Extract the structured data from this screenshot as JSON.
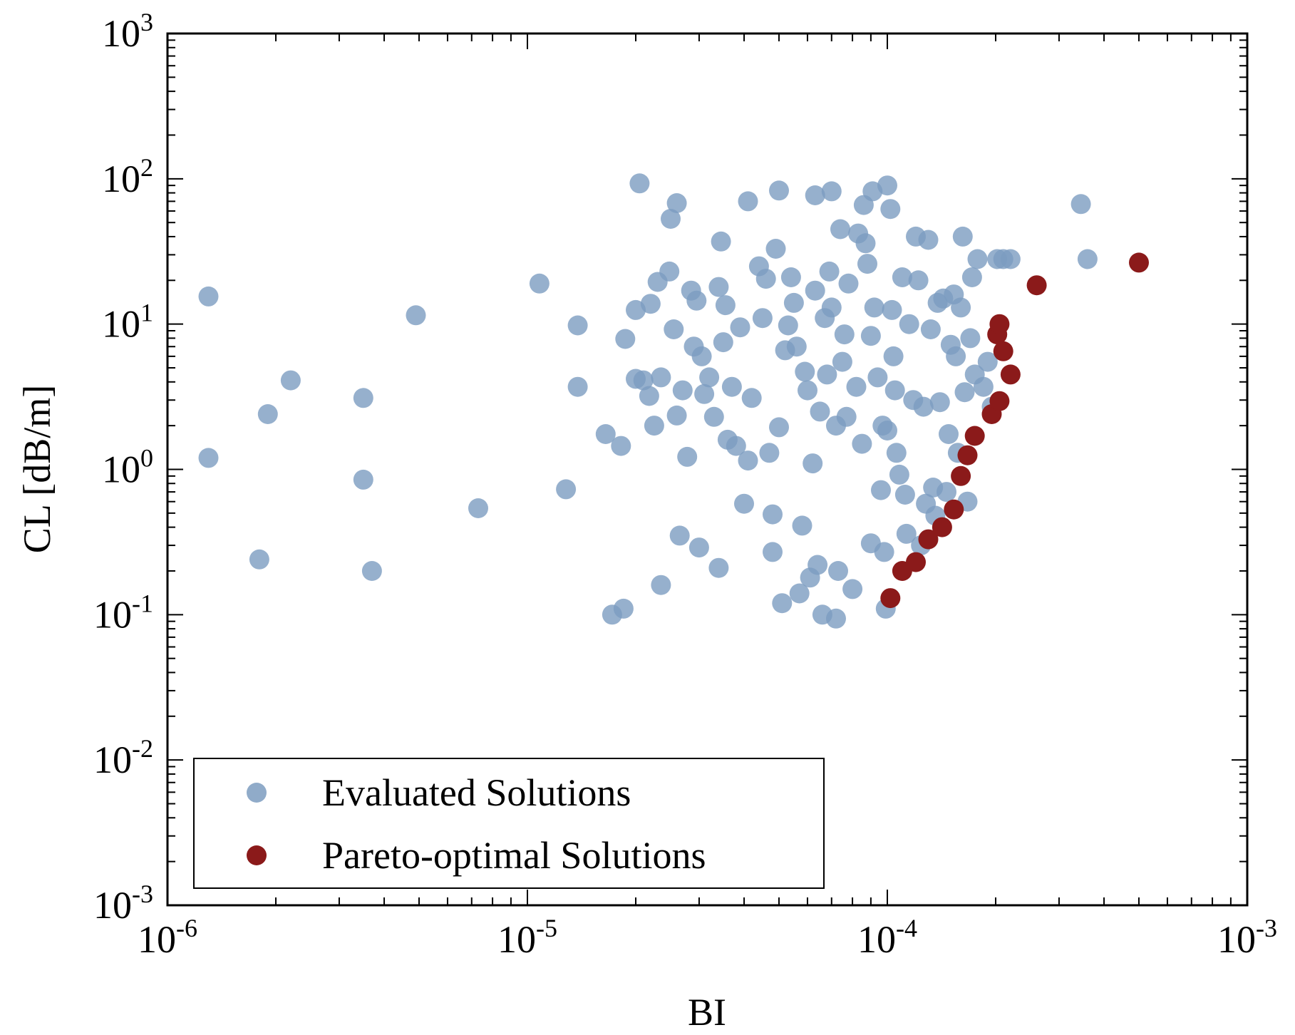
{
  "chart_data": {
    "type": "scatter",
    "xscale": "log",
    "yscale": "log",
    "xlabel": "BI",
    "ylabel": "CL [dB/m]",
    "xlim": [
      1e-06,
      0.001
    ],
    "ylim": [
      0.001,
      1000.0
    ],
    "xticks": [
      {
        "value": 1e-06,
        "base": "10",
        "exp": "-6"
      },
      {
        "value": 1e-05,
        "base": "10",
        "exp": "-5"
      },
      {
        "value": 0.0001,
        "base": "10",
        "exp": "-4"
      },
      {
        "value": 0.001,
        "base": "10",
        "exp": "-3"
      }
    ],
    "yticks": [
      {
        "value": 0.001,
        "base": "10",
        "exp": "-3"
      },
      {
        "value": 0.01,
        "base": "10",
        "exp": "-2"
      },
      {
        "value": 0.1,
        "base": "10",
        "exp": "-1"
      },
      {
        "value": 1,
        "base": "10",
        "exp": "0"
      },
      {
        "value": 10,
        "base": "10",
        "exp": "1"
      },
      {
        "value": 100,
        "base": "10",
        "exp": "2"
      },
      {
        "value": 1000,
        "base": "10",
        "exp": "3"
      }
    ],
    "legend": {
      "placement": "bottom-left",
      "entries": [
        {
          "name": "Evaluated Solutions",
          "color": "#7c9cc0"
        },
        {
          "name": "Pareto-optimal Solutions",
          "color": "#8b1a1a"
        }
      ]
    },
    "series": [
      {
        "name": "Evaluated Solutions",
        "color": "#7c9cc0",
        "points": [
          [
            1.3e-06,
            15.5
          ],
          [
            1.3e-06,
            1.2
          ],
          [
            1.8e-06,
            0.24
          ],
          [
            1.9e-06,
            2.4
          ],
          [
            2.2e-06,
            4.1
          ],
          [
            3.5e-06,
            3.1
          ],
          [
            3.5e-06,
            0.85
          ],
          [
            3.7e-06,
            0.2
          ],
          [
            4.9e-06,
            11.5
          ],
          [
            7.3e-06,
            0.54
          ],
          [
            1.08e-05,
            19
          ],
          [
            1.28e-05,
            0.73
          ],
          [
            1.38e-05,
            9.8
          ],
          [
            1.38e-05,
            3.7
          ],
          [
            1.65e-05,
            1.75
          ],
          [
            1.72e-05,
            0.1
          ],
          [
            1.82e-05,
            1.45
          ],
          [
            1.85e-05,
            0.11
          ],
          [
            1.87e-05,
            7.9
          ],
          [
            2e-05,
            12.5
          ],
          [
            2e-05,
            4.2
          ],
          [
            2.05e-05,
            93
          ],
          [
            2.1e-05,
            4.1
          ],
          [
            2.18e-05,
            3.2
          ],
          [
            2.2e-05,
            13.8
          ],
          [
            2.25e-05,
            2.0
          ],
          [
            2.3e-05,
            19.5
          ],
          [
            2.35e-05,
            4.3
          ],
          [
            2.35e-05,
            0.16
          ],
          [
            2.48e-05,
            23
          ],
          [
            2.5e-05,
            53
          ],
          [
            2.55e-05,
            9.2
          ],
          [
            2.6e-05,
            68
          ],
          [
            2.6e-05,
            2.35
          ],
          [
            2.65e-05,
            0.35
          ],
          [
            2.7e-05,
            3.5
          ],
          [
            2.78e-05,
            1.22
          ],
          [
            2.85e-05,
            17
          ],
          [
            2.9e-05,
            7.0
          ],
          [
            2.95e-05,
            14.5
          ],
          [
            3e-05,
            0.29
          ],
          [
            3.05e-05,
            6.0
          ],
          [
            3.1e-05,
            3.3
          ],
          [
            3.2e-05,
            4.3
          ],
          [
            3.3e-05,
            2.3
          ],
          [
            3.4e-05,
            18
          ],
          [
            3.4e-05,
            0.21
          ],
          [
            3.45e-05,
            37
          ],
          [
            3.5e-05,
            7.5
          ],
          [
            3.55e-05,
            13.5
          ],
          [
            3.6e-05,
            1.6
          ],
          [
            3.7e-05,
            3.7
          ],
          [
            3.8e-05,
            1.45
          ],
          [
            3.9e-05,
            9.5
          ],
          [
            4e-05,
            0.58
          ],
          [
            4.1e-05,
            70
          ],
          [
            4.1e-05,
            1.15
          ],
          [
            4.2e-05,
            3.1
          ],
          [
            4.4e-05,
            25
          ],
          [
            4.5e-05,
            11
          ],
          [
            4.6e-05,
            20.5
          ],
          [
            4.7e-05,
            1.3
          ],
          [
            4.8e-05,
            0.49
          ],
          [
            4.8e-05,
            0.27
          ],
          [
            4.9e-05,
            33
          ],
          [
            5e-05,
            83
          ],
          [
            5e-05,
            1.95
          ],
          [
            5.1e-05,
            0.12
          ],
          [
            5.2e-05,
            6.6
          ],
          [
            5.3e-05,
            9.8
          ],
          [
            5.4e-05,
            21
          ],
          [
            5.5e-05,
            14
          ],
          [
            5.6e-05,
            7.0
          ],
          [
            5.7e-05,
            0.14
          ],
          [
            5.8e-05,
            0.41
          ],
          [
            5.9e-05,
            4.7
          ],
          [
            6e-05,
            3.5
          ],
          [
            6.1e-05,
            0.18
          ],
          [
            6.2e-05,
            1.1
          ],
          [
            6.3e-05,
            77
          ],
          [
            6.3e-05,
            17
          ],
          [
            6.4e-05,
            0.22
          ],
          [
            6.5e-05,
            2.5
          ],
          [
            6.6e-05,
            0.1
          ],
          [
            6.7e-05,
            11
          ],
          [
            6.8e-05,
            4.5
          ],
          [
            6.9e-05,
            23
          ],
          [
            7e-05,
            82
          ],
          [
            7e-05,
            13
          ],
          [
            7.2e-05,
            0.094
          ],
          [
            7.2e-05,
            2.0
          ],
          [
            7.3e-05,
            0.2
          ],
          [
            7.4e-05,
            45
          ],
          [
            7.5e-05,
            5.5
          ],
          [
            7.6e-05,
            8.5
          ],
          [
            7.7e-05,
            2.3
          ],
          [
            7.8e-05,
            19
          ],
          [
            8e-05,
            0.15
          ],
          [
            8.2e-05,
            3.7
          ],
          [
            8.3e-05,
            42
          ],
          [
            8.5e-05,
            1.5
          ],
          [
            8.6e-05,
            66
          ],
          [
            8.7e-05,
            36
          ],
          [
            8.8e-05,
            26
          ],
          [
            9e-05,
            0.31
          ],
          [
            9e-05,
            8.3
          ],
          [
            9.1e-05,
            82
          ],
          [
            9.2e-05,
            13
          ],
          [
            9.4e-05,
            4.3
          ],
          [
            9.6e-05,
            0.72
          ],
          [
            9.7e-05,
            2.0
          ],
          [
            9.8e-05,
            0.27
          ],
          [
            9.9e-05,
            0.11
          ],
          [
            0.0001,
            90
          ],
          [
            0.0001,
            1.85
          ],
          [
            0.000102,
            62
          ],
          [
            0.000103,
            12.5
          ],
          [
            0.000104,
            6.0
          ],
          [
            0.000105,
            3.5
          ],
          [
            0.000106,
            1.3
          ],
          [
            0.000108,
            0.92
          ],
          [
            0.00011,
            21
          ],
          [
            0.000112,
            0.67
          ],
          [
            0.000113,
            0.36
          ],
          [
            0.000115,
            10
          ],
          [
            0.000118,
            3.0
          ],
          [
            0.00012,
            40
          ],
          [
            0.000122,
            20
          ],
          [
            0.000124,
            0.3
          ],
          [
            0.000126,
            2.7
          ],
          [
            0.000128,
            0.58
          ],
          [
            0.00013,
            38
          ],
          [
            0.000132,
            9.2
          ],
          [
            0.000134,
            0.75
          ],
          [
            0.000136,
            0.48
          ],
          [
            0.000138,
            14
          ],
          [
            0.00014,
            2.9
          ],
          [
            0.000143,
            15
          ],
          [
            0.000146,
            0.7
          ],
          [
            0.000148,
            1.75
          ],
          [
            0.00015,
            7.2
          ],
          [
            0.000153,
            16
          ],
          [
            0.000155,
            6.0
          ],
          [
            0.000157,
            1.3
          ],
          [
            0.00016,
            13
          ],
          [
            0.000162,
            40
          ],
          [
            0.000164,
            3.4
          ],
          [
            0.000167,
            0.6
          ],
          [
            0.00017,
            8.0
          ],
          [
            0.000172,
            21
          ],
          [
            0.000175,
            4.5
          ],
          [
            0.000178,
            28
          ],
          [
            0.000185,
            3.7
          ],
          [
            0.00019,
            5.5
          ],
          [
            0.000195,
            2.7
          ],
          [
            0.000202,
            28
          ],
          [
            0.00021,
            28
          ],
          [
            0.00022,
            28
          ],
          [
            0.000345,
            67
          ],
          [
            0.00036,
            28
          ]
        ]
      },
      {
        "name": "Pareto-optimal Solutions",
        "color": "#8b1a1a",
        "points": [
          [
            0.000102,
            0.13
          ],
          [
            0.00011,
            0.2
          ],
          [
            0.00012,
            0.23
          ],
          [
            0.00013,
            0.33
          ],
          [
            0.000142,
            0.4
          ],
          [
            0.000153,
            0.53
          ],
          [
            0.00016,
            0.9
          ],
          [
            0.000167,
            1.25
          ],
          [
            0.000175,
            1.7
          ],
          [
            0.000195,
            2.4
          ],
          [
            0.000205,
            2.95
          ],
          [
            0.00021,
            6.5
          ],
          [
            0.00022,
            4.5
          ],
          [
            0.000202,
            8.5
          ],
          [
            0.000205,
            10
          ],
          [
            0.00026,
            18.5
          ],
          [
            0.0005,
            26.5
          ]
        ]
      }
    ]
  }
}
